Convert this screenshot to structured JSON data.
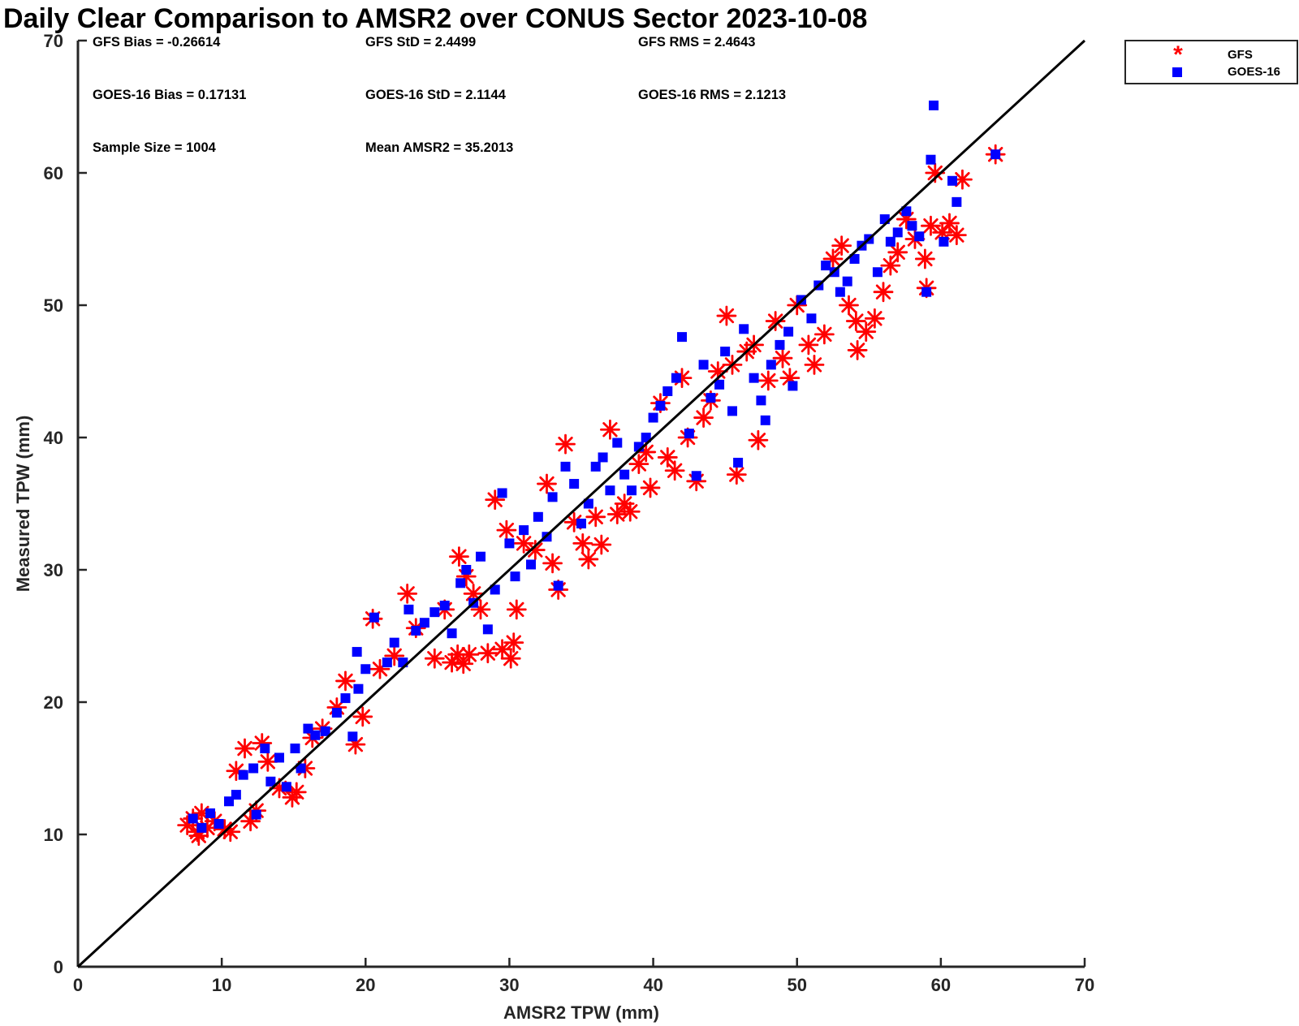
{
  "chart_data": {
    "type": "scatter",
    "title": "Daily Clear Comparison to AMSR2 over CONUS Sector 2023-10-08",
    "xlabel": "AMSR2 TPW (mm)",
    "ylabel": "Measured TPW (mm)",
    "xlim": [
      0,
      70
    ],
    "ylim": [
      0,
      70
    ],
    "xticks": [
      "0",
      "10",
      "20",
      "30",
      "40",
      "50",
      "60",
      "70"
    ],
    "yticks": [
      "0",
      "10",
      "20",
      "30",
      "40",
      "50",
      "60",
      "70"
    ],
    "grid": false,
    "legend_position": "outside top-right",
    "reference_line": {
      "x": [
        0,
        70
      ],
      "y": [
        0,
        70
      ],
      "color": "#000000"
    },
    "stats": [
      "GFS Bias = -0.26614",
      "GFS StD = 2.4499",
      "GFS RMS = 2.4643",
      "GOES-16 Bias = 0.17131",
      "GOES-16 StD = 2.1144",
      "GOES-16 RMS = 2.1213",
      "Sample Size = 1004",
      "Mean AMSR2 = 35.2013"
    ],
    "series": [
      {
        "name": "GFS",
        "marker": "asterisk",
        "color": "#ff0000",
        "points": [
          [
            7.6,
            10.7
          ],
          [
            8.0,
            11.2
          ],
          [
            8.3,
            10.2
          ],
          [
            8.6,
            11.6
          ],
          [
            8.4,
            9.9
          ],
          [
            9.0,
            10.5
          ],
          [
            9.5,
            11.0
          ],
          [
            10.2,
            10.4
          ],
          [
            10.6,
            10.2
          ],
          [
            11.0,
            14.8
          ],
          [
            11.6,
            16.5
          ],
          [
            12.0,
            11.0
          ],
          [
            12.4,
            11.8
          ],
          [
            12.8,
            16.9
          ],
          [
            13.2,
            15.5
          ],
          [
            14.0,
            13.5
          ],
          [
            14.9,
            12.8
          ],
          [
            15.2,
            13.2
          ],
          [
            15.8,
            15.0
          ],
          [
            16.3,
            17.3
          ],
          [
            17.0,
            18.0
          ],
          [
            18.0,
            19.6
          ],
          [
            18.6,
            21.6
          ],
          [
            19.3,
            16.8
          ],
          [
            19.8,
            18.9
          ],
          [
            20.5,
            26.3
          ],
          [
            21.0,
            22.5
          ],
          [
            22.0,
            23.5
          ],
          [
            22.9,
            28.2
          ],
          [
            23.5,
            25.6
          ],
          [
            24.8,
            23.3
          ],
          [
            25.5,
            27.0
          ],
          [
            26.0,
            23.0
          ],
          [
            26.4,
            23.6
          ],
          [
            26.8,
            22.9
          ],
          [
            27.2,
            23.6
          ],
          [
            26.5,
            31.0
          ],
          [
            27.0,
            29.5
          ],
          [
            27.5,
            28.2
          ],
          [
            28.0,
            27.0
          ],
          [
            28.5,
            23.7
          ],
          [
            29.0,
            35.3
          ],
          [
            29.5,
            24.0
          ],
          [
            30.1,
            23.3
          ],
          [
            30.3,
            24.5
          ],
          [
            29.8,
            33.0
          ],
          [
            30.5,
            27.0
          ],
          [
            31.0,
            32.0
          ],
          [
            31.8,
            31.5
          ],
          [
            32.6,
            36.5
          ],
          [
            33.0,
            30.5
          ],
          [
            33.4,
            28.5
          ],
          [
            33.9,
            39.5
          ],
          [
            34.5,
            33.6
          ],
          [
            35.1,
            32.0
          ],
          [
            35.5,
            30.8
          ],
          [
            36.0,
            34.0
          ],
          [
            36.4,
            31.9
          ],
          [
            37.0,
            40.6
          ],
          [
            37.5,
            34.2
          ],
          [
            38.0,
            35.0
          ],
          [
            38.4,
            34.4
          ],
          [
            39.0,
            38.0
          ],
          [
            39.5,
            38.9
          ],
          [
            39.8,
            36.2
          ],
          [
            40.5,
            42.6
          ],
          [
            41.0,
            38.5
          ],
          [
            41.5,
            37.5
          ],
          [
            42.0,
            44.5
          ],
          [
            42.4,
            40.0
          ],
          [
            43.0,
            36.7
          ],
          [
            43.5,
            41.5
          ],
          [
            44.0,
            42.8
          ],
          [
            44.5,
            45.0
          ],
          [
            45.1,
            49.2
          ],
          [
            45.5,
            45.5
          ],
          [
            45.8,
            37.2
          ],
          [
            46.5,
            46.5
          ],
          [
            47.0,
            47.0
          ],
          [
            47.3,
            39.8
          ],
          [
            48.0,
            44.3
          ],
          [
            48.5,
            48.8
          ],
          [
            49.0,
            46.0
          ],
          [
            49.5,
            44.5
          ],
          [
            50.0,
            50.0
          ],
          [
            50.8,
            47.0
          ],
          [
            51.2,
            45.5
          ],
          [
            51.9,
            47.8
          ],
          [
            52.5,
            53.5
          ],
          [
            53.1,
            54.5
          ],
          [
            53.6,
            50.0
          ],
          [
            54.1,
            48.8
          ],
          [
            54.2,
            46.6
          ],
          [
            54.8,
            48.0
          ],
          [
            55.4,
            49.0
          ],
          [
            56.0,
            51.0
          ],
          [
            56.5,
            53.0
          ],
          [
            57.0,
            54.0
          ],
          [
            57.6,
            56.5
          ],
          [
            58.2,
            55.0
          ],
          [
            58.9,
            53.5
          ],
          [
            59.0,
            51.3
          ],
          [
            59.3,
            56.0
          ],
          [
            59.6,
            60.0
          ],
          [
            60.1,
            55.5
          ],
          [
            60.6,
            56.2
          ],
          [
            61.1,
            55.3
          ],
          [
            61.5,
            59.5
          ],
          [
            63.8,
            61.4
          ]
        ]
      },
      {
        "name": "GOES-16",
        "marker": "square",
        "color": "#0000ff",
        "points": [
          [
            8.0,
            11.2
          ],
          [
            8.6,
            10.5
          ],
          [
            9.2,
            11.6
          ],
          [
            9.8,
            10.8
          ],
          [
            10.5,
            12.5
          ],
          [
            11.0,
            13.0
          ],
          [
            11.5,
            14.5
          ],
          [
            12.2,
            15.0
          ],
          [
            12.4,
            11.5
          ],
          [
            13.0,
            16.5
          ],
          [
            13.4,
            14.0
          ],
          [
            14.0,
            15.8
          ],
          [
            14.5,
            13.6
          ],
          [
            15.1,
            16.5
          ],
          [
            15.5,
            15.0
          ],
          [
            16.0,
            18.0
          ],
          [
            16.5,
            17.5
          ],
          [
            17.2,
            17.8
          ],
          [
            18.0,
            19.2
          ],
          [
            18.6,
            20.3
          ],
          [
            19.1,
            17.4
          ],
          [
            19.5,
            21.0
          ],
          [
            19.4,
            23.8
          ],
          [
            20.0,
            22.5
          ],
          [
            20.6,
            26.4
          ],
          [
            21.5,
            23.0
          ],
          [
            22.0,
            24.5
          ],
          [
            22.6,
            23.0
          ],
          [
            23.0,
            27.0
          ],
          [
            23.5,
            25.4
          ],
          [
            24.1,
            26.0
          ],
          [
            24.8,
            26.8
          ],
          [
            25.5,
            27.3
          ],
          [
            26.0,
            25.2
          ],
          [
            26.6,
            29.0
          ],
          [
            27.0,
            30.0
          ],
          [
            27.5,
            27.5
          ],
          [
            28.0,
            31.0
          ],
          [
            28.5,
            25.5
          ],
          [
            29.0,
            28.5
          ],
          [
            29.5,
            35.8
          ],
          [
            30.0,
            32.0
          ],
          [
            30.4,
            29.5
          ],
          [
            31.0,
            33.0
          ],
          [
            31.5,
            30.4
          ],
          [
            32.0,
            34.0
          ],
          [
            32.6,
            32.5
          ],
          [
            33.0,
            35.5
          ],
          [
            33.4,
            28.8
          ],
          [
            33.9,
            37.8
          ],
          [
            34.5,
            36.5
          ],
          [
            35.0,
            33.5
          ],
          [
            35.5,
            35.0
          ],
          [
            36.0,
            37.8
          ],
          [
            36.5,
            38.5
          ],
          [
            37.0,
            36.0
          ],
          [
            37.5,
            39.6
          ],
          [
            38.0,
            37.2
          ],
          [
            38.5,
            36.0
          ],
          [
            39.0,
            39.3
          ],
          [
            39.5,
            40.0
          ],
          [
            40.0,
            41.5
          ],
          [
            40.5,
            42.4
          ],
          [
            41.0,
            43.5
          ],
          [
            41.6,
            44.5
          ],
          [
            42.0,
            47.6
          ],
          [
            42.5,
            40.3
          ],
          [
            43.0,
            37.1
          ],
          [
            43.5,
            45.5
          ],
          [
            44.0,
            43.0
          ],
          [
            44.6,
            44.0
          ],
          [
            45.0,
            46.5
          ],
          [
            45.5,
            42.0
          ],
          [
            45.9,
            38.1
          ],
          [
            46.3,
            48.2
          ],
          [
            47.0,
            44.5
          ],
          [
            47.5,
            42.8
          ],
          [
            47.8,
            41.3
          ],
          [
            48.2,
            45.5
          ],
          [
            48.8,
            47.0
          ],
          [
            49.4,
            48.0
          ],
          [
            49.7,
            43.9
          ],
          [
            50.3,
            50.4
          ],
          [
            51.0,
            49.0
          ],
          [
            51.5,
            51.5
          ],
          [
            52.0,
            53.0
          ],
          [
            52.6,
            52.5
          ],
          [
            53.0,
            51.0
          ],
          [
            53.5,
            51.8
          ],
          [
            54.0,
            53.5
          ],
          [
            54.5,
            54.5
          ],
          [
            55.0,
            55.0
          ],
          [
            55.6,
            52.5
          ],
          [
            56.1,
            56.5
          ],
          [
            56.5,
            54.8
          ],
          [
            57.0,
            55.5
          ],
          [
            57.6,
            57.1
          ],
          [
            58.0,
            56.0
          ],
          [
            58.5,
            55.2
          ],
          [
            59.0,
            51.0
          ],
          [
            59.3,
            61.0
          ],
          [
            59.5,
            65.1
          ],
          [
            60.2,
            54.8
          ],
          [
            60.8,
            59.4
          ],
          [
            61.1,
            57.8
          ],
          [
            63.8,
            61.4
          ]
        ]
      }
    ]
  },
  "legend": {
    "items": [
      {
        "label": "GFS",
        "symbol": "*",
        "color": "#ff0000"
      },
      {
        "label": "GOES-16",
        "symbol": "■",
        "color": "#0000ff"
      }
    ]
  }
}
